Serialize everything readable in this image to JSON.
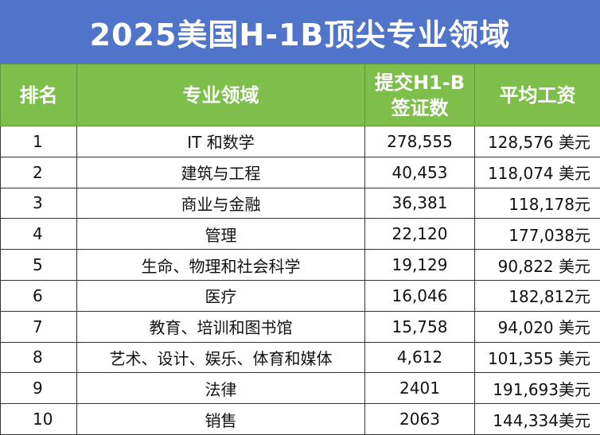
{
  "title": "2025美国H-1B顶尖专业领域",
  "headers": {
    "rank": "排名",
    "field": "专业领域",
    "visas": "提交H1-B签证数",
    "salary": "平均工资"
  },
  "rows": [
    {
      "rank": "1",
      "field": "IT 和数学",
      "visas": "278,555",
      "salary": "128,576 美元"
    },
    {
      "rank": "2",
      "field": "建筑与工程",
      "visas": "40,453",
      "salary": "118,074 美元"
    },
    {
      "rank": "3",
      "field": "商业与金融",
      "visas": "36,381",
      "salary": "118,178元"
    },
    {
      "rank": "4",
      "field": "管理",
      "visas": "22,120",
      "salary": "177,038元"
    },
    {
      "rank": "5",
      "field": "生命、物理和社会科学",
      "visas": "19,129",
      "salary": "90,822 美元"
    },
    {
      "rank": "6",
      "field": "医疗",
      "visas": "16,046",
      "salary": "182,812元"
    },
    {
      "rank": "7",
      "field": "教育、培训和图书馆",
      "visas": "15,758",
      "salary": "94,020 美元"
    },
    {
      "rank": "8",
      "field": "艺术、设计、娱乐、体育和媒体",
      "visas": "4,612",
      "salary": "101,355 美元"
    },
    {
      "rank": "9",
      "field": "法律",
      "visas": "2401",
      "salary": "191,693美元"
    },
    {
      "rank": "10",
      "field": "销售",
      "visas": "2063",
      "salary": "144,334美元"
    }
  ]
}
